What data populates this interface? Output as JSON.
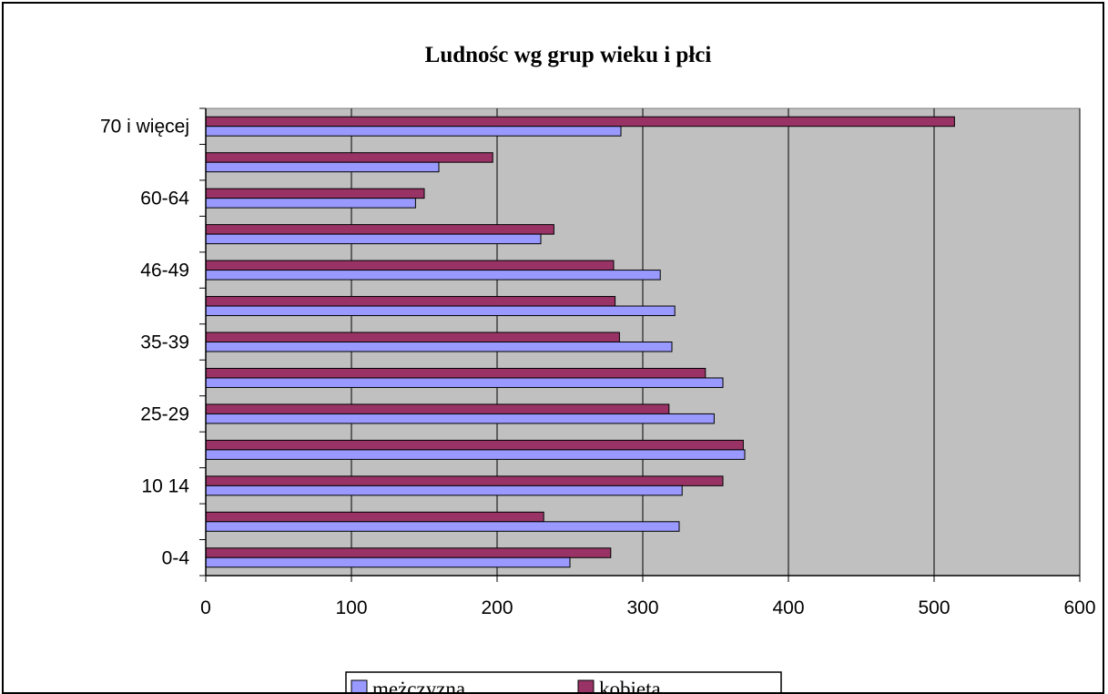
{
  "chart_data": {
    "type": "bar",
    "orientation": "horizontal",
    "title": "Ludnośc wg grup wieku i płci",
    "xlabel": "",
    "ylabel": "",
    "xlim": [
      0,
      600
    ],
    "xticks": [
      0,
      100,
      200,
      300,
      400,
      500,
      600
    ],
    "categories": [
      "0-4",
      "",
      "10 14",
      "",
      "25-29",
      "",
      "35-39",
      "",
      "46-49",
      "",
      "60-64",
      "",
      "70 i więcej"
    ],
    "series": [
      {
        "name": "mężczyzna",
        "color": "#9999ff",
        "values": [
          250,
          325,
          327,
          370,
          349,
          355,
          320,
          322,
          312,
          230,
          144,
          160,
          285
        ]
      },
      {
        "name": "kobieta",
        "color": "#993366",
        "values": [
          278,
          232,
          355,
          369,
          318,
          343,
          284,
          281,
          280,
          239,
          150,
          197,
          514
        ]
      }
    ],
    "plot_background": "#c0c0c0",
    "grid": true,
    "legend_position": "bottom"
  }
}
